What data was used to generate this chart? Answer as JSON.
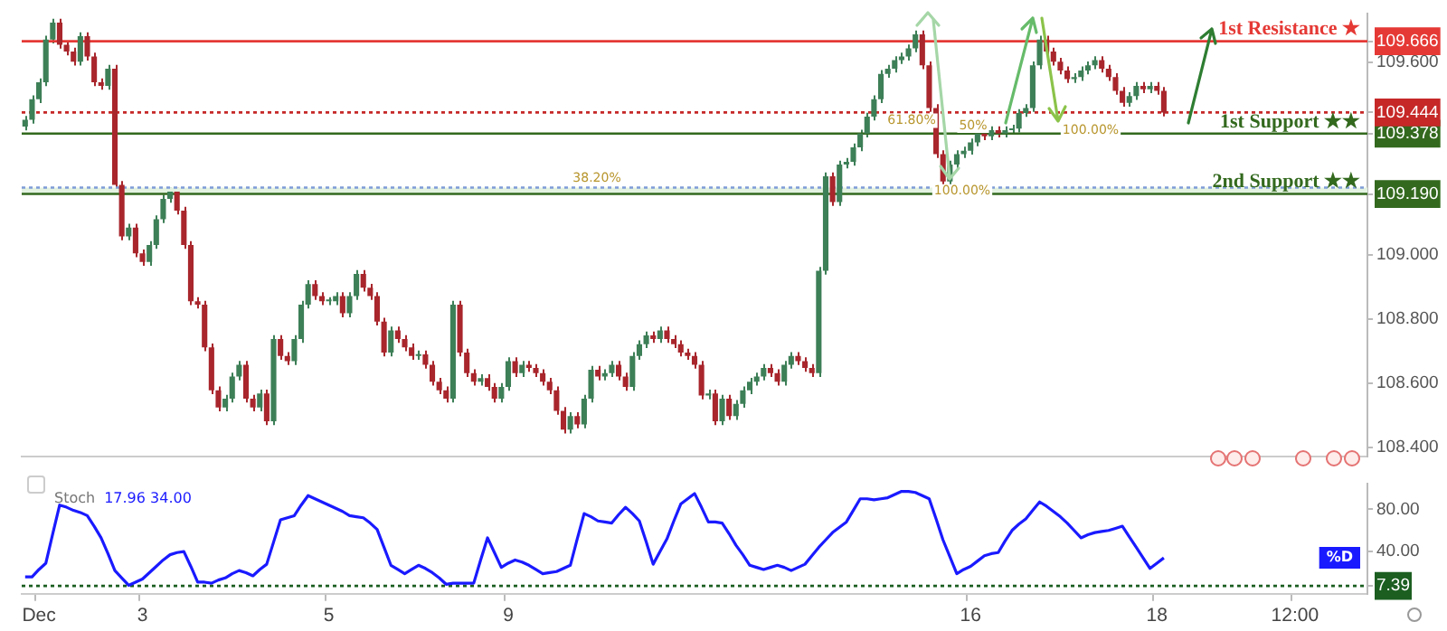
{
  "chart_data": [
    {
      "type": "candlestick",
      "categories": [
        null,
        null,
        null,
        null,
        null,
        null,
        null,
        null,
        null,
        null,
        null,
        null,
        null,
        null,
        null,
        null,
        null,
        null,
        null,
        null,
        null,
        null,
        null,
        null,
        null,
        null,
        null,
        null,
        null,
        null,
        null,
        null,
        null,
        null,
        null,
        null,
        null,
        null,
        null,
        null,
        null,
        null,
        null,
        null,
        null,
        null,
        null,
        null,
        null,
        null,
        null,
        null,
        null,
        null,
        null,
        null,
        null,
        null,
        null,
        null,
        null,
        null,
        null,
        null,
        null,
        null,
        null,
        null,
        null,
        null,
        null,
        null,
        null,
        null,
        null,
        null,
        null,
        null,
        null,
        null,
        null,
        null,
        null,
        null,
        null,
        null,
        null,
        null,
        null,
        null,
        null,
        null,
        null,
        null,
        null,
        null,
        null,
        null,
        null,
        null,
        null,
        null,
        null,
        null,
        null,
        null,
        null,
        null,
        null,
        null,
        null,
        null,
        null,
        null,
        null,
        null,
        null,
        null,
        null,
        null,
        null,
        null,
        null,
        null,
        null,
        null,
        null,
        null,
        null,
        null,
        null,
        null,
        null,
        null,
        null,
        null,
        null,
        null,
        null,
        null,
        null,
        null,
        null,
        null,
        null,
        null,
        null,
        null,
        null,
        null,
        null,
        null,
        null,
        null,
        null,
        null,
        null,
        null,
        null,
        null,
        null,
        null,
        null,
        null,
        null,
        null,
        null,
        null,
        null,
        null,
        null,
        null,
        null,
        null,
        null,
        null,
        null,
        null,
        null,
        null,
        null,
        null,
        null,
        null,
        null,
        null,
        null,
        null,
        null,
        null,
        null,
        null,
        null,
        null,
        null
      ],
      "ohlc": [
        [
          109.4,
          109.433,
          109.388,
          109.421
        ],
        [
          109.421,
          109.497,
          109.409,
          109.485
        ],
        [
          109.485,
          109.55,
          109.473,
          109.538
        ],
        [
          109.538,
          109.683,
          109.526,
          109.671
        ],
        [
          109.671,
          109.736,
          109.659,
          109.724
        ],
        [
          109.724,
          109.736,
          109.643,
          109.655
        ],
        [
          109.655,
          109.667,
          109.622,
          109.634
        ],
        [
          109.634,
          109.646,
          109.59,
          109.602
        ],
        [
          109.602,
          109.694,
          109.59,
          109.682
        ],
        [
          109.682,
          109.694,
          109.606,
          109.618
        ],
        [
          109.618,
          109.63,
          109.526,
          109.538
        ],
        [
          109.538,
          109.55,
          109.515,
          109.527
        ],
        [
          109.527,
          109.592,
          109.515,
          109.58
        ],
        [
          109.58,
          109.592,
          109.206,
          109.218
        ],
        [
          109.218,
          109.23,
          109.046,
          109.058
        ],
        [
          109.058,
          109.097,
          109.046,
          109.085
        ],
        [
          109.085,
          109.097,
          108.993,
          109.005
        ],
        [
          109.005,
          109.017,
          108.966,
          108.978
        ],
        [
          108.978,
          109.043,
          108.966,
          109.031
        ],
        [
          109.031,
          109.123,
          109.019,
          109.111
        ],
        [
          109.111,
          109.187,
          109.099,
          109.175
        ],
        [
          109.175,
          109.209,
          109.163,
          109.197
        ],
        [
          109.197,
          109.209,
          109.126,
          109.138
        ],
        [
          109.138,
          109.15,
          109.019,
          109.031
        ],
        [
          109.031,
          109.043,
          108.844,
          108.856
        ],
        [
          108.856,
          108.868,
          108.833,
          108.845
        ],
        [
          108.845,
          108.857,
          108.7,
          108.712
        ],
        [
          108.712,
          108.724,
          108.566,
          108.578
        ],
        [
          108.578,
          108.59,
          108.513,
          108.525
        ],
        [
          108.525,
          108.564,
          108.513,
          108.552
        ],
        [
          108.552,
          108.633,
          108.54,
          108.621
        ],
        [
          108.621,
          108.67,
          108.609,
          108.658
        ],
        [
          108.658,
          108.67,
          108.54,
          108.552
        ],
        [
          108.552,
          108.564,
          108.513,
          108.525
        ],
        [
          108.525,
          108.58,
          108.513,
          108.568
        ],
        [
          108.568,
          108.58,
          108.47,
          108.482
        ],
        [
          108.482,
          108.75,
          108.47,
          108.738
        ],
        [
          108.738,
          108.75,
          108.673,
          108.685
        ],
        [
          108.685,
          108.697,
          108.657,
          108.669
        ],
        [
          108.669,
          108.75,
          108.657,
          108.738
        ],
        [
          108.738,
          108.857,
          108.726,
          108.845
        ],
        [
          108.845,
          108.921,
          108.833,
          108.909
        ],
        [
          108.909,
          108.921,
          108.86,
          108.872
        ],
        [
          108.872,
          108.884,
          108.844,
          108.856
        ],
        [
          108.856,
          108.868,
          108.844,
          108.856
        ],
        [
          108.856,
          108.884,
          108.844,
          108.872
        ],
        [
          108.872,
          108.884,
          108.806,
          108.818
        ],
        [
          108.818,
          108.884,
          108.806,
          108.872
        ],
        [
          108.872,
          108.953,
          108.86,
          108.941
        ],
        [
          108.941,
          108.953,
          108.886,
          108.898
        ],
        [
          108.898,
          108.91,
          108.86,
          108.872
        ],
        [
          108.872,
          108.884,
          108.78,
          108.792
        ],
        [
          108.792,
          108.804,
          108.684,
          108.696
        ],
        [
          108.696,
          108.777,
          108.684,
          108.765
        ],
        [
          108.765,
          108.777,
          108.726,
          108.738
        ],
        [
          108.738,
          108.75,
          108.7,
          108.712
        ],
        [
          108.712,
          108.724,
          108.673,
          108.685
        ],
        [
          108.685,
          108.702,
          108.673,
          108.69
        ],
        [
          108.69,
          108.702,
          108.646,
          108.658
        ],
        [
          108.658,
          108.67,
          108.593,
          108.605
        ],
        [
          108.605,
          108.617,
          108.566,
          108.578
        ],
        [
          108.578,
          108.59,
          108.54,
          108.552
        ],
        [
          108.552,
          108.857,
          108.54,
          108.845
        ],
        [
          108.845,
          108.857,
          108.684,
          108.696
        ],
        [
          108.696,
          108.708,
          108.62,
          108.632
        ],
        [
          108.632,
          108.644,
          108.593,
          108.605
        ],
        [
          108.605,
          108.628,
          108.593,
          108.616
        ],
        [
          108.616,
          108.628,
          108.577,
          108.589
        ],
        [
          108.589,
          108.601,
          108.54,
          108.552
        ],
        [
          108.552,
          108.601,
          108.54,
          108.589
        ],
        [
          108.589,
          108.681,
          108.577,
          108.669
        ],
        [
          108.669,
          108.681,
          108.62,
          108.632
        ],
        [
          108.632,
          108.67,
          108.62,
          108.658
        ],
        [
          108.658,
          108.67,
          108.636,
          108.648
        ],
        [
          108.648,
          108.66,
          108.62,
          108.632
        ],
        [
          108.632,
          108.644,
          108.593,
          108.605
        ],
        [
          108.605,
          108.617,
          108.566,
          108.578
        ],
        [
          108.578,
          108.59,
          108.502,
          108.514
        ],
        [
          108.514,
          108.526,
          108.444,
          108.456
        ],
        [
          108.456,
          108.51,
          108.444,
          108.498
        ],
        [
          108.498,
          108.51,
          108.46,
          108.472
        ],
        [
          108.472,
          108.564,
          108.46,
          108.552
        ],
        [
          108.552,
          108.654,
          108.54,
          108.642
        ],
        [
          108.642,
          108.654,
          108.609,
          108.621
        ],
        [
          108.621,
          108.644,
          108.609,
          108.632
        ],
        [
          108.632,
          108.67,
          108.62,
          108.658
        ],
        [
          108.658,
          108.67,
          108.609,
          108.621
        ],
        [
          108.621,
          108.633,
          108.577,
          108.589
        ],
        [
          108.589,
          108.697,
          108.577,
          108.685
        ],
        [
          108.685,
          108.734,
          108.673,
          108.722
        ],
        [
          108.722,
          108.761,
          108.71,
          108.749
        ],
        [
          108.749,
          108.761,
          108.726,
          108.738
        ],
        [
          108.738,
          108.777,
          108.726,
          108.765
        ],
        [
          108.765,
          108.777,
          108.726,
          108.738
        ],
        [
          108.738,
          108.75,
          108.71,
          108.722
        ],
        [
          108.722,
          108.734,
          108.684,
          108.696
        ],
        [
          108.696,
          108.708,
          108.673,
          108.685
        ],
        [
          108.685,
          108.697,
          108.646,
          108.658
        ],
        [
          108.658,
          108.67,
          108.55,
          108.562
        ],
        [
          108.562,
          108.58,
          108.55,
          108.568
        ],
        [
          108.568,
          108.58,
          108.47,
          108.482
        ],
        [
          108.482,
          108.564,
          108.47,
          108.552
        ],
        [
          108.552,
          108.564,
          108.486,
          108.498
        ],
        [
          108.498,
          108.548,
          108.486,
          108.536
        ],
        [
          108.536,
          108.59,
          108.524,
          108.578
        ],
        [
          108.578,
          108.617,
          108.566,
          108.605
        ],
        [
          108.605,
          108.633,
          108.593,
          108.621
        ],
        [
          108.621,
          108.66,
          108.609,
          108.648
        ],
        [
          108.648,
          108.66,
          108.62,
          108.632
        ],
        [
          108.632,
          108.644,
          108.593,
          108.605
        ],
        [
          108.605,
          108.67,
          108.593,
          108.658
        ],
        [
          108.658,
          108.697,
          108.646,
          108.685
        ],
        [
          108.685,
          108.697,
          108.657,
          108.669
        ],
        [
          108.669,
          108.681,
          108.636,
          108.648
        ],
        [
          108.648,
          108.66,
          108.62,
          108.632
        ],
        [
          108.632,
          108.963,
          108.62,
          108.951
        ],
        [
          108.951,
          109.257,
          108.939,
          109.245
        ],
        [
          109.245,
          109.257,
          109.153,
          109.165
        ],
        [
          109.165,
          109.294,
          109.153,
          109.282
        ],
        [
          109.282,
          109.302,
          109.27,
          109.29
        ],
        [
          109.29,
          109.347,
          109.278,
          109.335
        ],
        [
          109.335,
          109.39,
          109.323,
          109.378
        ],
        [
          109.378,
          109.443,
          109.366,
          109.431
        ],
        [
          109.431,
          109.497,
          109.419,
          109.485
        ],
        [
          109.485,
          109.576,
          109.473,
          109.564
        ],
        [
          109.564,
          109.592,
          109.552,
          109.58
        ],
        [
          109.58,
          109.619,
          109.568,
          109.607
        ],
        [
          109.607,
          109.63,
          109.595,
          109.618
        ],
        [
          109.618,
          109.656,
          109.606,
          109.644
        ],
        [
          109.644,
          109.699,
          109.632,
          109.687
        ],
        [
          109.687,
          109.699,
          109.579,
          109.591
        ],
        [
          109.591,
          109.603,
          109.446,
          109.458
        ],
        [
          109.458,
          109.47,
          109.302,
          109.314
        ],
        [
          109.314,
          109.326,
          109.217,
          109.229
        ],
        [
          109.229,
          109.294,
          109.217,
          109.282
        ],
        [
          109.282,
          109.326,
          109.27,
          109.314
        ],
        [
          109.314,
          109.337,
          109.302,
          109.325
        ],
        [
          109.325,
          109.363,
          109.313,
          109.351
        ],
        [
          109.351,
          109.39,
          109.339,
          109.378
        ],
        [
          109.378,
          109.39,
          109.358,
          109.37
        ],
        [
          109.37,
          109.401,
          109.358,
          109.389
        ],
        [
          109.389,
          109.401,
          109.366,
          109.378
        ],
        [
          109.378,
          109.401,
          109.366,
          109.389
        ],
        [
          109.389,
          109.406,
          109.377,
          109.394
        ],
        [
          109.394,
          109.454,
          109.382,
          109.442
        ],
        [
          109.442,
          109.47,
          109.43,
          109.458
        ],
        [
          109.458,
          109.603,
          109.446,
          109.591
        ],
        [
          109.591,
          109.683,
          109.579,
          109.671
        ],
        [
          109.671,
          109.683,
          109.622,
          109.634
        ],
        [
          109.634,
          109.646,
          109.59,
          109.602
        ],
        [
          109.602,
          109.614,
          109.563,
          109.575
        ],
        [
          109.575,
          109.587,
          109.536,
          109.548
        ],
        [
          109.548,
          109.566,
          109.536,
          109.554
        ],
        [
          109.554,
          109.587,
          109.542,
          109.575
        ],
        [
          109.575,
          109.603,
          109.563,
          109.591
        ],
        [
          109.591,
          109.619,
          109.579,
          109.607
        ],
        [
          109.607,
          109.619,
          109.568,
          109.58
        ],
        [
          109.58,
          109.592,
          109.542,
          109.554
        ],
        [
          109.554,
          109.566,
          109.499,
          109.511
        ],
        [
          109.511,
          109.523,
          109.462,
          109.474
        ],
        [
          109.474,
          109.507,
          109.462,
          109.495
        ],
        [
          109.495,
          109.539,
          109.483,
          109.527
        ],
        [
          109.527,
          109.539,
          109.504,
          109.516
        ],
        [
          109.516,
          109.539,
          109.504,
          109.527
        ],
        [
          109.527,
          109.539,
          109.499,
          109.511
        ],
        [
          109.511,
          109.523,
          109.432,
          109.444
        ],
        null,
        null,
        null,
        null,
        null,
        null,
        null,
        null,
        null,
        null,
        null,
        null,
        null,
        null,
        null,
        null,
        null,
        null,
        null,
        null,
        null,
        null,
        null,
        null,
        null,
        null,
        null,
        null,
        null
      ],
      "ylim": [
        108.373,
        109.751
      ],
      "yticks": [
        {
          "value": 108.4,
          "label": "108.400"
        },
        {
          "value": 108.6,
          "label": "108.600"
        },
        {
          "value": 108.8,
          "label": "108.800"
        },
        {
          "value": 109,
          "label": "109.000"
        },
        {
          "value": 109.19,
          "label": "109.190"
        },
        {
          "value": 109.378,
          "label": "109.378"
        },
        {
          "value": 109.444,
          "label": "109.444"
        },
        {
          "value": 109.6,
          "label": "109.600"
        },
        {
          "value": 109.666,
          "label": "109.666"
        }
      ],
      "tick_labels": "y",
      "bands": [
        {
          "axis": "y",
          "from": 109.19,
          "to": 109.21,
          "color": "#e3f2e1"
        }
      ],
      "ref_lines": [
        {
          "axis": "y",
          "value": 109.666,
          "label": "1st Resistance ★",
          "color": "#e53935"
        },
        {
          "axis": "y",
          "value": 109.444,
          "color": "#c62828",
          "line_style": "dotted"
        },
        {
          "axis": "y",
          "value": 109.378,
          "label": "1st Support ★★",
          "color": "#33691e"
        },
        {
          "axis": "y",
          "value": 109.21,
          "color": "#7e9cd8",
          "line_style": "dotted"
        },
        {
          "axis": "y",
          "value": 109.19,
          "label": "2nd Support ★★",
          "color": "#33691e"
        }
      ],
      "annotations": [
        {
          "text": "38.20%",
          "y": 109.21
        },
        {
          "text": "61.80%",
          "y": 109.39
        },
        {
          "text": "50%",
          "y": 109.375
        },
        {
          "text": "100.00%",
          "y": 109.17
        },
        {
          "text": "100.00%",
          "y": 109.36
        }
      ]
    },
    {
      "type": "line",
      "title": "Stoch",
      "subtitle": "17.96 34.00",
      "categories": [
        null,
        null,
        "Dec",
        null,
        null,
        null,
        null,
        null,
        null,
        null,
        null,
        null,
        null,
        null,
        null,
        null,
        null,
        "3",
        null,
        null,
        null,
        null,
        null,
        null,
        null,
        null,
        null,
        null,
        null,
        null,
        null,
        null,
        null,
        null,
        null,
        null,
        null,
        null,
        null,
        null,
        null,
        null,
        null,
        null,
        "5",
        null,
        null,
        null,
        null,
        null,
        null,
        null,
        null,
        null,
        null,
        null,
        null,
        null,
        null,
        null,
        null,
        null,
        null,
        null,
        null,
        null,
        null,
        null,
        null,
        null,
        "9",
        null,
        null,
        null,
        null,
        null,
        null,
        null,
        null,
        null,
        null,
        null,
        null,
        null,
        null,
        null,
        null,
        null,
        null,
        null,
        null,
        null,
        null,
        null,
        null,
        null,
        null,
        null,
        null,
        null,
        null,
        null,
        null,
        null,
        null,
        null,
        null,
        null,
        null,
        null,
        null,
        null,
        null,
        null,
        null,
        null,
        null,
        null,
        null,
        null,
        null,
        null,
        null,
        null,
        null,
        null,
        null,
        null,
        null,
        null,
        null,
        null,
        null,
        null,
        null,
        null,
        null,
        "16",
        null,
        null,
        null,
        null,
        null,
        null,
        null,
        null,
        null,
        null,
        null,
        null,
        null,
        null,
        null,
        null,
        null,
        null,
        null,
        null,
        null,
        null,
        null,
        null,
        null,
        null,
        "18",
        null,
        null,
        null,
        null,
        null,
        null,
        null,
        null,
        null,
        null,
        null,
        null,
        null,
        null,
        null,
        null,
        null,
        null,
        null,
        "12:00",
        null,
        null,
        null,
        null,
        null,
        null,
        null,
        null,
        null,
        null
      ],
      "series": [
        {
          "name": "%D",
          "color": "#1a1aff",
          "values": [
            16,
            16,
            23,
            29,
            57,
            84,
            82,
            79,
            77,
            74,
            64,
            53,
            38,
            22,
            15,
            8,
            11,
            14,
            20,
            26,
            32,
            37,
            39,
            40,
            26,
            11,
            11,
            10,
            13,
            15,
            19,
            22,
            20,
            17,
            23,
            28,
            49,
            70,
            72,
            74,
            84,
            93,
            90,
            87,
            84,
            81,
            78,
            74,
            73,
            72,
            67,
            61,
            44,
            27,
            23,
            19,
            23,
            27,
            24,
            20,
            15,
            9,
            10,
            10,
            10,
            10,
            32,
            53,
            39,
            25,
            29,
            32,
            30,
            27,
            23,
            19,
            20,
            21,
            24,
            27,
            52,
            76,
            73,
            69,
            68,
            67,
            75,
            82,
            76,
            69,
            49,
            28,
            40,
            52,
            69,
            85,
            90,
            95,
            82,
            68,
            68,
            67,
            57,
            46,
            37,
            27,
            25,
            23,
            25,
            27,
            25,
            22,
            25,
            28,
            36,
            44,
            51,
            58,
            63,
            68,
            79,
            90,
            90,
            89,
            90,
            91,
            94,
            97,
            97,
            96,
            93,
            90,
            71,
            51,
            35,
            19,
            23,
            26,
            31,
            36,
            38,
            39,
            50,
            60,
            66,
            71,
            79,
            87,
            83,
            78,
            73,
            67,
            60,
            53,
            56,
            58,
            59,
            60,
            62,
            64,
            54,
            44,
            34,
            24,
            29,
            34,
            null,
            null,
            null,
            null,
            null,
            null,
            null,
            null,
            null,
            null,
            null,
            null,
            null,
            null,
            null,
            null,
            null,
            null,
            null,
            null,
            null,
            null,
            null,
            null,
            null,
            null,
            null,
            null,
            null
          ]
        }
      ],
      "ylim": [
        0,
        104
      ],
      "yticks": [
        {
          "value": 7.39,
          "label": "7.39"
        },
        {
          "value": 40,
          "label": "40.00"
        },
        {
          "value": 80,
          "label": "80.00"
        }
      ],
      "ref_lines": [
        {
          "axis": "y",
          "value": 7.39,
          "color": "#1b5e20",
          "line_style": "dotted"
        }
      ]
    }
  ]
}
